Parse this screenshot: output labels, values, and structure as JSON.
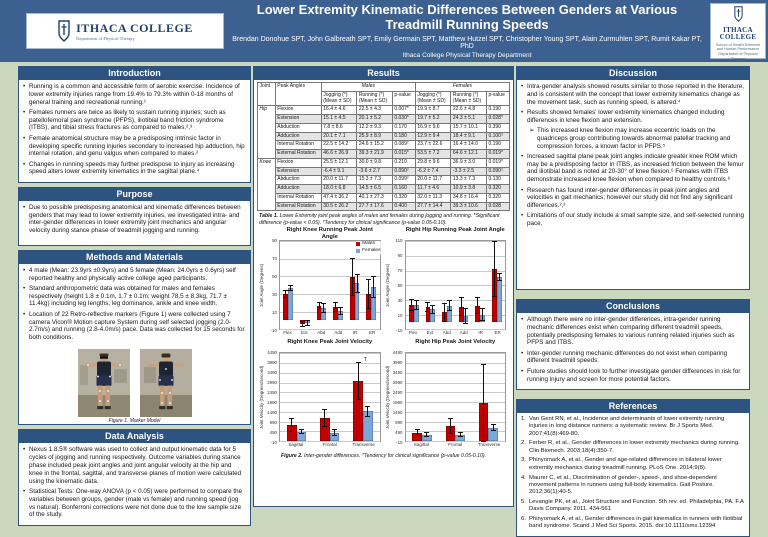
{
  "header": {
    "title": "Lower Extremity Kinematic Differences Between Genders at Various Treadmill Running Speeds",
    "authors": "Brendan Donohue SPT, John Galbreath SPT, Emily Germain SPT, Matthew Hutzel SPT, Christopher Young SPT, Alain Zurmuhlen SPT, Rumit Kakar PT, PhD",
    "department": "Ithaca College Physical Therapy Department",
    "logo_left": {
      "name": "ITHACA COLLEGE",
      "sub": "Department of Physical Therapy"
    },
    "logo_right": {
      "name_line1": "ITHACA",
      "name_line2": "COLLEGE",
      "sub1": "School of Health Sciences and Human Performance",
      "sub2": "Department of Physical Therapy"
    }
  },
  "colors": {
    "header_bg": "#3c6191",
    "section_bg": "#2d5480",
    "body_bg": "#cbd8be",
    "males": "#C00000",
    "females": "#7BA7D9"
  },
  "sections": {
    "introduction": {
      "heading": "Introduction",
      "bullets": [
        "Running is a common and accessible form of aerobic exercise. Incidence of lower extremity injuries range from 19.4% to 79.3% within 0-18 months of general training and recreational running.¹",
        "Females runners are twice as likely to sustain running injuries; such as patellofemoral pain syndrome (PFPS), iliotibial band friction syndrome (ITBS), and tibial stress fractures as compared to males.²,³",
        "Female anatomical structure may be a predisposing intrinsic factor in developing specific running injuries secondary to increased hip adduction, hip internal rotation, and genu valgus when compared to males.²",
        "Changes in running speeds may further predispose to injury as increasing speed alters lower extremity kinematics in the sagittal plane.⁴"
      ]
    },
    "purpose": {
      "heading": "Purpose",
      "bullets": [
        "Due to possible predisposing anatomical and kinematic differences between genders that may lead to lower extremity injuries, we investigated intra- and inter-gender differences in lower extremity joint mechanics and angular velocity during stance phase of treadmill jogging and running."
      ]
    },
    "methods": {
      "heading": "Methods and Materials",
      "bullets": [
        "4 male (Mean: 23.9yrs ±0.9yrs) and 5 female (Mean: 24.0yrs ± 0.6yrs) self reported healthy and physically active college aged participants.",
        "Standard anthropometric data was obtained for males and females respectively (height 1.8 ± 0.1m, 1.7 ± 0.1m; weight 78.5 ± 8.3kg, 71.7 ± 11.4kg) including leg lengths, leg dominance, ankle and knee width.",
        "Location of 22 Retro-reflective markers (Figure 1) were collected using 7 camera Vicon® Motion capture System during self selected jogging (2.0-2.7m/s) and running (2.8-4.0m/s) pace. Data was collected for 15 seconds for both conditions."
      ],
      "figure1_caption": "Figure 1. Marker Model"
    },
    "data_analysis": {
      "heading": "Data Analysis",
      "bullets": [
        "Nexus 1.8.5® software was used to collect and output kinematic data for 5 cycles of jogging and running respectively. Outcome variables during stance phase included peak joint angles and joint angular velocity at the hip and knee in the frontal, sagittal, and transverse planes of motion were calculated using the kinematic data.",
        "Statistical Tests: One-way ANOVA (p < 0.05) were performed to compare the variables between groups, gender (male vs female) and running speed (jog vs natural). Bonferroni corrections were not done due to the low sample size of the study."
      ]
    },
    "results": {
      "heading": "Results",
      "table": {
        "joint_header": "Joint",
        "peak_angles_header": "Peak Angles",
        "group_headers": [
          "Males",
          "Females"
        ],
        "sub_headers": [
          "Jogging (°) (Mean ± SD)",
          "Running (°) (Mean ± SD)",
          "p-value",
          "Jogging (°) (Mean ± SD)",
          "Running (°) (Mean ± SD)",
          "p-value"
        ],
        "groups": [
          {
            "joint": "Hip",
            "rows": [
              [
                "Flexion",
                "16.4 ± 4.6",
                "22.5 ± 4.3",
                "0.007*",
                "19.9 ± 8.7",
                "22.6 ± 4.8",
                "0.190"
              ],
              [
                "Extension",
                "15.1 ± 4.5",
                "20.1 ± 5.2",
                "0.030*",
                "19.7 ± 5.2",
                "24.3 ± 5.1",
                "0.028*"
              ],
              [
                "Abduction",
                "7.8 ± 8.6",
                "12.2 ± 9.3",
                "0.170",
                "16.9 ± 9.6",
                "15.7 ± 10.1",
                "0.390"
              ],
              [
                "Adduction",
                "20.1 ± 7.1",
                "25.9 ± 8.9",
                "0.180",
                "12.9 ± 9.4",
                "18.4 ± 9.1",
                "0.100ᵀ"
              ],
              [
                "Internal Rotation",
                "22.5 ± 14.2",
                "24.6 ± 15.2",
                "0.089ᵀ",
                "23.7 ± 22.6",
                "16.4 ± 14.0",
                "0.190"
              ],
              [
                "External Rotation",
                "46.6 ± 26.9",
                "39.3 ± 21.9",
                "0.015*",
                "53.5 ± 7.2",
                "64.6 ± 12.1",
                "0.019*"
              ]
            ]
          },
          {
            "joint": "Knee",
            "rows": [
              [
                "Flexion",
                "25.5 ± 12.1",
                "30.0 ± 9.8",
                "0.210",
                "29.8 ± 9.6",
                "36.9 ± 3.0",
                "0.019*"
              ],
              [
                "Extension",
                "-6.4 ± 9.1",
                "-3.6 ± 2.7",
                "0.090ᵀ",
                "-6.2 ± 7.4",
                "-3.3 ± 2.5",
                "0.090ᵀ"
              ],
              [
                "Abduction",
                "20.0 ± 11.7",
                "15.3 ± 7.3",
                "0.099ᵀ",
                "20.0 ± 11.7",
                "13.3 ± 7.3",
                "0.130"
              ],
              [
                "Adduction",
                "18.0 ± 6.8",
                "14.5 ± 6.5",
                "0.160",
                "11.7 ± 4.6",
                "10.9 ± 3.8",
                "0.320"
              ],
              [
                "Internal Rotation",
                "47.4 ± 36.2",
                "40.1 ± 27.3",
                "0.320",
                "32.0 ± 11.3",
                "34.8 ± 16.4",
                "0.320"
              ],
              [
                "External Rotation",
                "30.5 ± 26.2",
                "27.7 ± 17.6",
                "0.400",
                "27.7 ± 14.4",
                "39.3 ± 10.6",
                "0.028"
              ]
            ]
          }
        ]
      },
      "table_caption": {
        "label": "Table 1.",
        "text": "Lower Extremity joint peak angles of males and females during jogging and running. *Significant difference (p-value < 0.05). ᵀTendency for clinical significance (p-value 0.05-0.10)."
      },
      "figure2_caption": {
        "label": "Figure 2.",
        "text": "Inter-gender differences. ᵀTendency for clinical significance (p-value 0.05-0.10)."
      }
    },
    "discussion": {
      "heading": "Discussion",
      "bullets": [
        {
          "level": 1,
          "text": "Intra-gender analysis showed results similar to those reported in the literature, and is consistent with the concept that lower extremity kinematics change as the movement task, such as running speed, is altered.⁴"
        },
        {
          "level": 1,
          "text": "Results showed females' lower extremity kinematics changed including differences in knee flexion and extension."
        },
        {
          "level": 2,
          "text": "This increased knee flexion may increase eccentric loads on the quadriceps group contributing towards abnormal patellar tracking and compression forces, a known factor in PFPS.⁵"
        },
        {
          "level": 1,
          "text": "Increased sagittal plane peak joint angles indicate greater knee ROM which may be a predisposing factor in ITBS, as increased friction between the femur and iliotibial band is noted at 20-30° of knee flexion.⁶ Females with ITBS demonstrate increased knee flexion when compared to healthy controls.⁶"
        },
        {
          "level": 1,
          "text": "Research has found inter-gender differences in peak joint angles and velocities in gait mechanics; however our study did not find any significant differences.²,³"
        },
        {
          "level": 1,
          "text": "Limitations of our study include a small sample size, and self-selected running pace."
        }
      ]
    },
    "conclusions": {
      "heading": "Conclusions",
      "bullets": [
        "Although there were no inter-gender differences, intra-gender running mechanic differences exist when comparing different treadmill speeds, potentially predisposing females to various running related injuries such as PFPS and ITBS.",
        "Inter-gender running mechanic differences do not exist when comparing different treadmill speeds.",
        "Future studies should look to further investigate gender differences in risk for running injury and screen for more potential factors."
      ]
    },
    "references": {
      "heading": "References",
      "items": [
        "Van Gent RN, et al., Incidence and determinants of lower extremity running injuries in long distance runners: a systematic review. Br J Sports Med. 2007;41(8):469-80.",
        "Ferber R, et al., Gender differences in lower extremity mechanics during running. Clin Biomech. 2003;18(4):350-7.",
        "Phinyomark A, et al., Gender and age-related differences in bilateral lower extremity mechanics during treadmill running. PLoS One. 2014;9(8).",
        "Maurer C, et al., Discrimination of gender-, speed-, and shoe-dependent movement patterns in runners using full-body kinematics. Gait Posture. 2012;36(1):40-5.",
        "Levangie PK, et al., Joint Structure and Function. 5th rev. ed. Philadelphia, PA. F.A Davis Company. 2011. 434-561",
        "Phinyomark A, et al., Gender differences in gait kinematics in runners with iliotibial band syndrome. Scand J Med Sci Sports. 2015. doi:10.1111/sms.12394"
      ]
    }
  },
  "chart_data": [
    {
      "type": "bar",
      "title": "Right Knee Running Peak Joint Angle",
      "xlabel": "",
      "ylabel": "Joint Angle (Degrees)",
      "categories": [
        "Flex",
        "Ext",
        "Abd",
        "Add",
        "IR",
        "ER"
      ],
      "ylim": [
        -10,
        90
      ],
      "ystep": 20,
      "grid": true,
      "show_legend": true,
      "legend_position": "top-right",
      "series": [
        {
          "name": "Males",
          "color": "#C00000",
          "values": [
            30,
            -4,
            16,
            15,
            49,
            30
          ],
          "errors": [
            4,
            3,
            4,
            5,
            21,
            16
          ]
        },
        {
          "name": "Females",
          "color": "#7BA7D9",
          "values": [
            37,
            -3,
            14,
            11,
            42,
            38
          ],
          "errors": [
            3,
            3,
            5,
            4,
            10,
            12
          ]
        }
      ]
    },
    {
      "type": "bar",
      "title": "Right Hip Running Peak Joint Angle",
      "xlabel": "",
      "ylabel": "Joint Angle (Degrees)",
      "categories": [
        "Flex",
        "Ext",
        "Abd",
        "Add",
        "IR",
        "ER"
      ],
      "ylim": [
        -10,
        110
      ],
      "ystep": 20,
      "grid": true,
      "show_legend": false,
      "series": [
        {
          "name": "Males",
          "color": "#C00000",
          "values": [
            23,
            20,
            13,
            21,
            22,
            72
          ],
          "errors": [
            7,
            6,
            12,
            12,
            11,
            38
          ]
        },
        {
          "name": "Females",
          "color": "#7BA7D9",
          "values": [
            23,
            17,
            22,
            8,
            10,
            61
          ],
          "errors": [
            6,
            5,
            7,
            10,
            8,
            5
          ]
        }
      ]
    },
    {
      "type": "bar",
      "title": "Right Knee Peak Joint Velocity",
      "xlabel": "",
      "ylabel": "Joint Velocity (Degrees/second)",
      "categories": [
        "Sagittal",
        "Frontal",
        "Transverse"
      ],
      "ylim": [
        -10,
        4490
      ],
      "ystep": 500,
      "grid": true,
      "show_legend": false,
      "annotations": [
        {
          "series": 0,
          "category": 2,
          "text": "T"
        }
      ],
      "series": [
        {
          "name": "Males",
          "color": "#C00000",
          "values": [
            820,
            1170,
            3060
          ],
          "errors": [
            350,
            450,
            950
          ]
        },
        {
          "name": "Females",
          "color": "#7BA7D9",
          "values": [
            480,
            420,
            1520
          ],
          "errors": [
            110,
            160,
            260
          ]
        }
      ]
    },
    {
      "type": "bar",
      "title": "Right Hip Peak Joint Velocity",
      "xlabel": "",
      "ylabel": "Joint Velocity (Degrees/second)",
      "categories": [
        "Sagittal",
        "Frontal",
        "Transverse"
      ],
      "ylim": [
        -10,
        4490
      ],
      "ystep": 500,
      "grid": true,
      "show_legend": false,
      "series": [
        {
          "name": "Males",
          "color": "#C00000",
          "values": [
            430,
            780,
            1950
          ],
          "errors": [
            140,
            380,
            1950
          ]
        },
        {
          "name": "Females",
          "color": "#7BA7D9",
          "values": [
            330,
            330,
            680
          ],
          "errors": [
            90,
            90,
            160
          ]
        }
      ]
    }
  ]
}
